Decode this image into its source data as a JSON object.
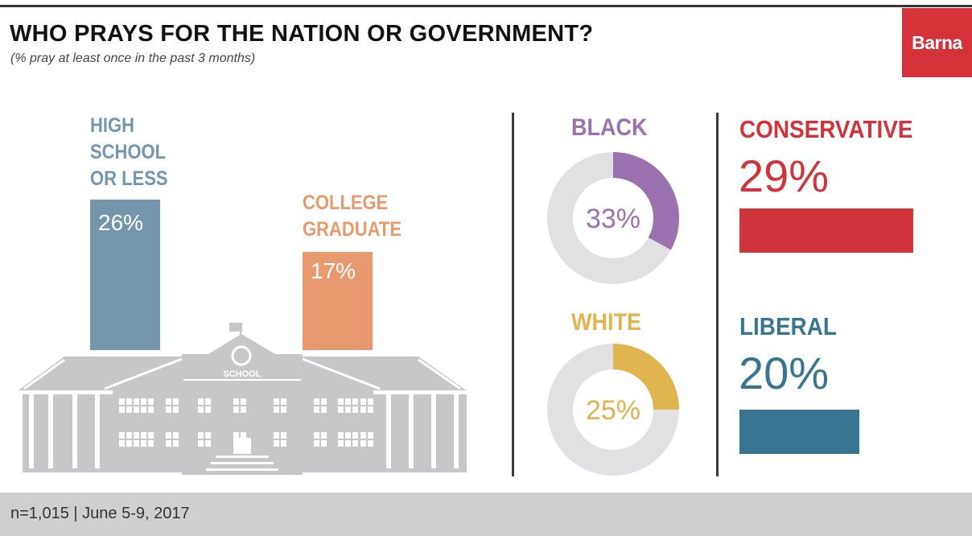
{
  "header": {
    "title": "WHO PRAYS FOR THE NATION OR GOVERNMENT?",
    "subtitle": "(% pray at least once in the past 3 months)",
    "logo": "Barna"
  },
  "building": {
    "sign": "SCHOOL"
  },
  "colors": {
    "high_school": "#7495aa",
    "college": "#e89a6e",
    "black": "#9b72b0",
    "white": "#e0b44e",
    "conservative": "#d1333b",
    "liberal": "#377590",
    "donut_track": "#e1e1e3",
    "logo_bg": "#d6323a",
    "building": "#c7c7c9"
  },
  "chart_data": [
    {
      "type": "bar",
      "categories": [
        "HIGH SCHOOL OR LESS",
        "COLLEGE GRADUATE"
      ],
      "category_lines": [
        [
          "HIGH",
          "SCHOOL",
          "OR LESS"
        ],
        [
          "COLLEGE",
          "GRADUATE"
        ]
      ],
      "values": [
        26,
        17
      ],
      "value_labels": [
        "26%",
        "17%"
      ],
      "ylim": [
        0,
        100
      ]
    },
    {
      "type": "pie",
      "categories": [
        "BLACK",
        "WHITE"
      ],
      "values": [
        33,
        25
      ],
      "value_labels": [
        "33%",
        "25%"
      ]
    },
    {
      "type": "bar",
      "categories": [
        "CONSERVATIVE",
        "LIBERAL"
      ],
      "values": [
        29,
        20
      ],
      "value_labels": [
        "29%",
        "20%"
      ],
      "ylim": [
        0,
        100
      ]
    }
  ],
  "footer": {
    "note": "n=1,015 | June 5-9, 2017"
  }
}
